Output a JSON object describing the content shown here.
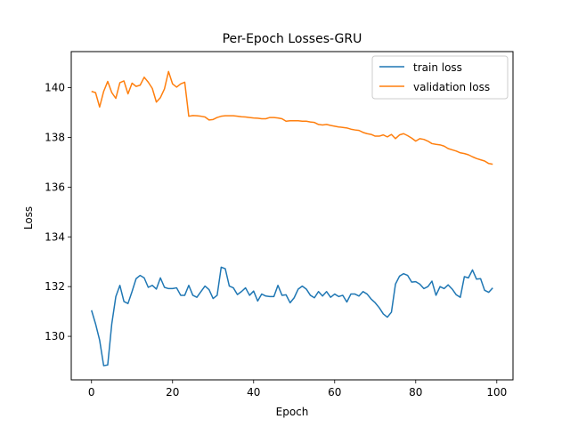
{
  "chart_data": {
    "type": "line",
    "title": "Per-Epoch Losses-GRU",
    "xlabel": "Epoch",
    "ylabel": "Loss",
    "xlim": [
      -5,
      104
    ],
    "ylim": [
      128.25,
      141.45
    ],
    "xticks": [
      0,
      20,
      40,
      60,
      80,
      100
    ],
    "yticks": [
      130,
      132,
      134,
      136,
      138,
      140
    ],
    "grid": false,
    "legend_position": "top-right",
    "x": [
      0,
      1,
      2,
      3,
      4,
      5,
      6,
      7,
      8,
      9,
      10,
      11,
      12,
      13,
      14,
      15,
      16,
      17,
      18,
      19,
      20,
      21,
      22,
      23,
      24,
      25,
      26,
      27,
      28,
      29,
      30,
      31,
      32,
      33,
      34,
      35,
      36,
      37,
      38,
      39,
      40,
      41,
      42,
      43,
      44,
      45,
      46,
      47,
      48,
      49,
      50,
      51,
      52,
      53,
      54,
      55,
      56,
      57,
      58,
      59,
      60,
      61,
      62,
      63,
      64,
      65,
      66,
      67,
      68,
      69,
      70,
      71,
      72,
      73,
      74,
      75,
      76,
      77,
      78,
      79,
      80,
      81,
      82,
      83,
      84,
      85,
      86,
      87,
      88,
      89,
      90,
      91,
      92,
      93,
      94,
      95,
      96,
      97,
      98,
      99
    ],
    "series": [
      {
        "name": "train loss",
        "color": "#1f77b4",
        "values": [
          131.05,
          130.5,
          129.85,
          128.82,
          128.85,
          130.5,
          131.6,
          132.05,
          131.4,
          131.32,
          131.8,
          132.32,
          132.45,
          132.35,
          131.97,
          132.05,
          131.9,
          132.35,
          131.97,
          131.92,
          131.92,
          131.95,
          131.65,
          131.65,
          132.05,
          131.65,
          131.57,
          131.8,
          132.02,
          131.88,
          131.52,
          131.65,
          132.78,
          132.72,
          132.02,
          131.95,
          131.68,
          131.8,
          131.95,
          131.65,
          131.82,
          131.42,
          131.7,
          131.62,
          131.6,
          131.6,
          132.05,
          131.65,
          131.67,
          131.35,
          131.55,
          131.9,
          132.02,
          131.9,
          131.65,
          131.55,
          131.8,
          131.62,
          131.8,
          131.57,
          131.7,
          131.6,
          131.65,
          131.38,
          131.7,
          131.7,
          131.62,
          131.8,
          131.7,
          131.5,
          131.35,
          131.15,
          130.9,
          130.77,
          130.97,
          132.1,
          132.42,
          132.52,
          132.45,
          132.18,
          132.2,
          132.1,
          131.92,
          132.0,
          132.22,
          131.65,
          132.0,
          131.92,
          132.07,
          131.9,
          131.67,
          131.57,
          132.4,
          132.35,
          132.67,
          132.3,
          132.32,
          131.85,
          131.77,
          131.95
        ]
      },
      {
        "name": "validation loss",
        "color": "#ff7f0e",
        "values": [
          139.85,
          139.8,
          139.22,
          139.85,
          140.25,
          139.8,
          139.57,
          140.2,
          140.27,
          139.75,
          140.18,
          140.05,
          140.1,
          140.42,
          140.22,
          139.97,
          139.42,
          139.6,
          139.95,
          140.65,
          140.15,
          140.02,
          140.15,
          140.22,
          138.85,
          138.88,
          138.87,
          138.85,
          138.82,
          138.7,
          138.72,
          138.8,
          138.85,
          138.87,
          138.87,
          138.87,
          138.85,
          138.83,
          138.82,
          138.8,
          138.78,
          138.77,
          138.75,
          138.75,
          138.8,
          138.8,
          138.78,
          138.75,
          138.65,
          138.67,
          138.67,
          138.67,
          138.65,
          138.65,
          138.62,
          138.6,
          138.52,
          138.5,
          138.52,
          138.48,
          138.45,
          138.42,
          138.4,
          138.38,
          138.33,
          138.3,
          138.28,
          138.2,
          138.15,
          138.12,
          138.05,
          138.05,
          138.1,
          138.02,
          138.12,
          137.95,
          138.1,
          138.15,
          138.07,
          137.97,
          137.85,
          137.95,
          137.92,
          137.85,
          137.75,
          137.72,
          137.7,
          137.65,
          137.55,
          137.5,
          137.45,
          137.38,
          137.35,
          137.3,
          137.22,
          137.15,
          137.1,
          137.05,
          136.95,
          136.92
        ]
      }
    ]
  }
}
